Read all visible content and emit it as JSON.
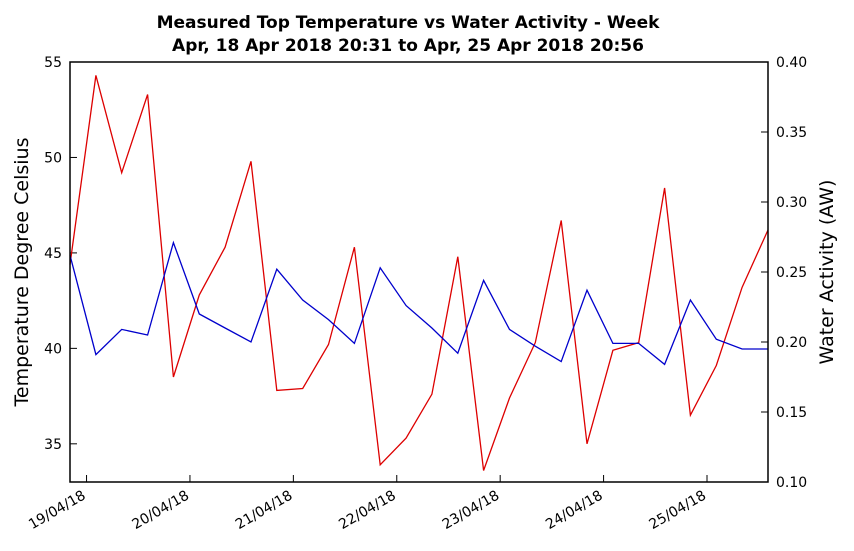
{
  "chart_data": {
    "type": "line",
    "title": "Measured Top Temperature vs Water Activity - Week",
    "subtitle": "Apr, 18 Apr 2018 20:31 to Apr, 25 Apr 2018 20:56",
    "y_label": "Temperature Degree Celsius",
    "y2_label": "Water Activity (AW)",
    "y_label_color": "#dd0000",
    "y2_label_color": "#0000cc",
    "x": [
      18.84,
      19.09,
      19.34,
      19.59,
      19.84,
      20.09,
      20.34,
      20.59,
      20.84,
      21.09,
      21.34,
      21.59,
      21.84,
      22.09,
      22.34,
      22.59,
      22.84,
      23.09,
      23.34,
      23.59,
      23.84,
      24.09,
      24.34,
      24.59,
      24.84,
      25.09,
      25.34,
      25.59
    ],
    "xlim": [
      18.84,
      25.59
    ],
    "xticks": [
      {
        "value": 19,
        "label": "19/04/18"
      },
      {
        "value": 20,
        "label": "20/04/18"
      },
      {
        "value": 21,
        "label": "21/04/18"
      },
      {
        "value": 22,
        "label": "22/04/18"
      },
      {
        "value": 23,
        "label": "23/04/18"
      },
      {
        "value": 24,
        "label": "24/04/18"
      },
      {
        "value": 25,
        "label": "25/04/18"
      }
    ],
    "ylim": [
      33,
      55
    ],
    "yticks": [
      35,
      40,
      45,
      50,
      55
    ],
    "y2lim": [
      0.1,
      0.4
    ],
    "y2ticks": [
      {
        "value": 0.1,
        "label": "0.10"
      },
      {
        "value": 0.15,
        "label": "0.15"
      },
      {
        "value": 0.2,
        "label": "0.20"
      },
      {
        "value": 0.25,
        "label": "0.25"
      },
      {
        "value": 0.3,
        "label": "0.30"
      },
      {
        "value": 0.35,
        "label": "0.35"
      },
      {
        "value": 0.4,
        "label": "0.40"
      }
    ],
    "series": [
      {
        "color": "#dd0000",
        "values": [
          44.4,
          54.3,
          49.2,
          53.3,
          38.5,
          42.8,
          45.3,
          49.8,
          37.8,
          37.9,
          40.2,
          45.3,
          33.9,
          35.3,
          37.6,
          44.8,
          33.6,
          37.4,
          40.3,
          46.7,
          35.0,
          39.9,
          40.3,
          48.4,
          36.5,
          39.1,
          43.2,
          46.2
        ]
      },
      {
        "color": "#0000cc",
        "axis": "y2",
        "values": [
          0.262,
          0.191,
          0.209,
          0.205,
          0.271,
          0.22,
          0.21,
          0.2,
          0.252,
          0.23,
          0.216,
          0.199,
          0.253,
          0.226,
          0.21,
          0.192,
          0.244,
          0.209,
          0.197,
          0.186,
          0.237,
          0.199,
          0.199,
          0.184,
          0.23,
          0.202,
          0.195,
          0.195
        ]
      }
    ]
  }
}
